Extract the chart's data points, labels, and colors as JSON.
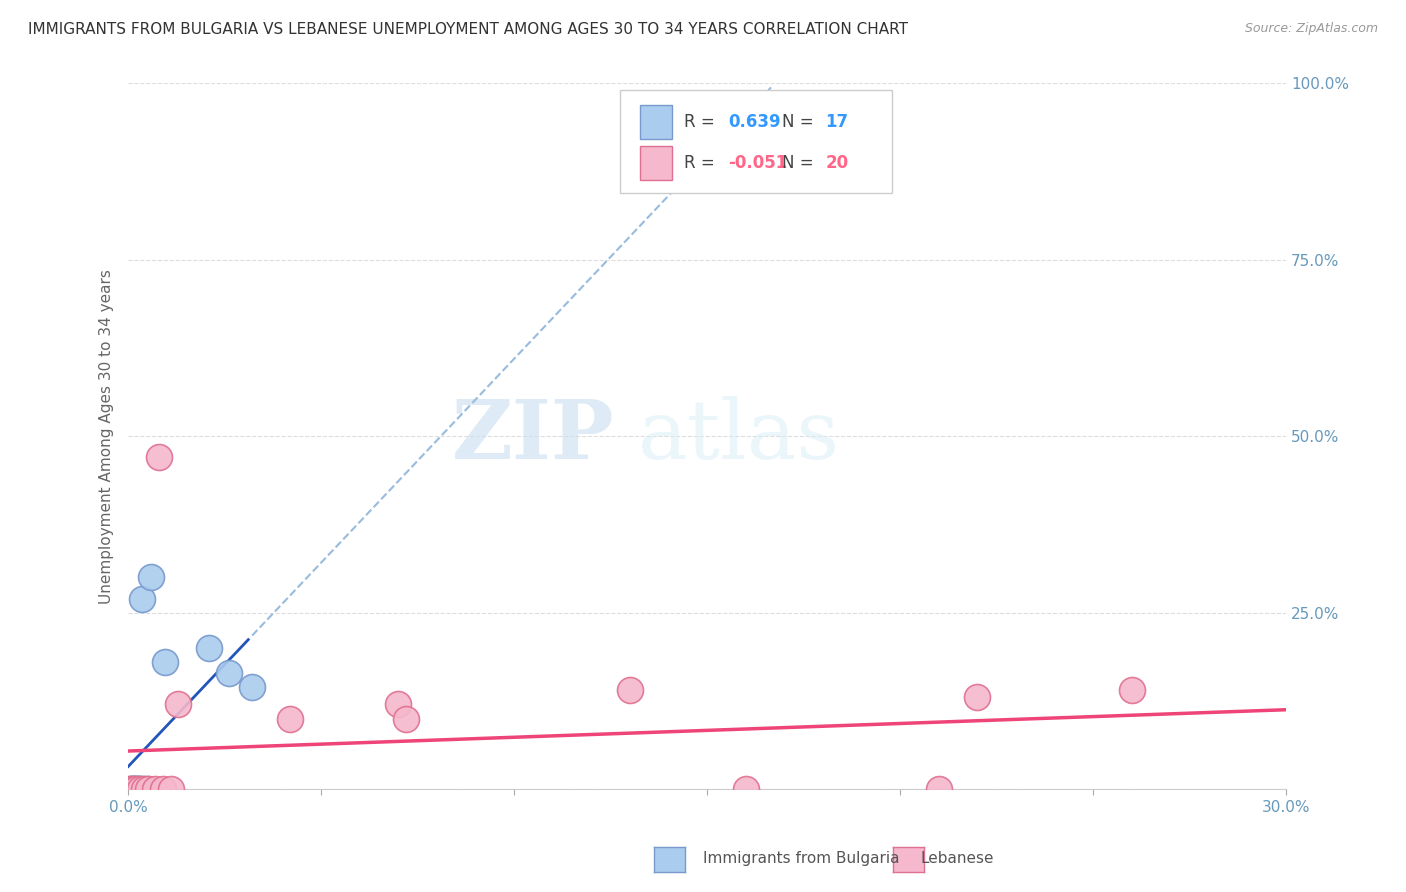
{
  "title": "IMMIGRANTS FROM BULGARIA VS LEBANESE UNEMPLOYMENT AMONG AGES 30 TO 34 YEARS CORRELATION CHART",
  "source": "Source: ZipAtlas.com",
  "ylabel": "Unemployment Among Ages 30 to 34 years",
  "xlim": [
    0.0,
    0.3
  ],
  "ylim": [
    0.0,
    1.0
  ],
  "xticks": [
    0.0,
    0.05,
    0.1,
    0.15,
    0.2,
    0.25,
    0.3
  ],
  "yticks": [
    0.0,
    0.25,
    0.5,
    0.75,
    1.0
  ],
  "xtick_labels_visible": [
    "0.0%",
    "",
    "",
    "",
    "",
    "",
    "30.0%"
  ],
  "ytick_labels_right": [
    "",
    "25.0%",
    "50.0%",
    "75.0%",
    "100.0%"
  ],
  "bulgaria_color": "#aaccee",
  "lebanese_color": "#f5b8cc",
  "bulgaria_edge": "#7799cc",
  "lebanese_edge": "#e07090",
  "trend_bulgaria_color": "#2255bb",
  "trend_lebanese_color": "#ee4477",
  "trend_bulgaria_dashed_color": "#99bbdd",
  "bulgaria_R": 0.639,
  "bulgaria_N": 17,
  "lebanese_R": -0.051,
  "lebanese_N": 20,
  "bulgaria_x": [
    0.0005,
    0.001,
    0.0012,
    0.0015,
    0.0018,
    0.0022,
    0.0025,
    0.0028,
    0.003,
    0.0035,
    0.004,
    0.005,
    0.006,
    0.0095,
    0.021,
    0.026,
    0.032
  ],
  "bulgaria_y": [
    0.0,
    0.0,
    0.0,
    0.0,
    0.0,
    0.0,
    0.0,
    0.0,
    0.0,
    0.27,
    0.0,
    0.0,
    0.3,
    0.18,
    0.2,
    0.165,
    0.145
  ],
  "lebanese_x": [
    0.0005,
    0.001,
    0.0015,
    0.002,
    0.003,
    0.004,
    0.005,
    0.007,
    0.008,
    0.009,
    0.011,
    0.013,
    0.042,
    0.07,
    0.072,
    0.13,
    0.16,
    0.21,
    0.22,
    0.26
  ],
  "lebanese_y": [
    0.0,
    0.0,
    0.0,
    0.0,
    0.0,
    0.0,
    0.0,
    0.0,
    0.47,
    0.0,
    0.0,
    0.12,
    0.1,
    0.12,
    0.1,
    0.14,
    0.0,
    0.0,
    0.13,
    0.14
  ],
  "watermark_zip": "ZIP",
  "watermark_atlas": "atlas",
  "background_color": "#ffffff",
  "grid_color": "#dddddd",
  "tick_color": "#6699bb",
  "legend_r_color_blue": "#3399ff",
  "legend_r_color_pink": "#ff6688"
}
